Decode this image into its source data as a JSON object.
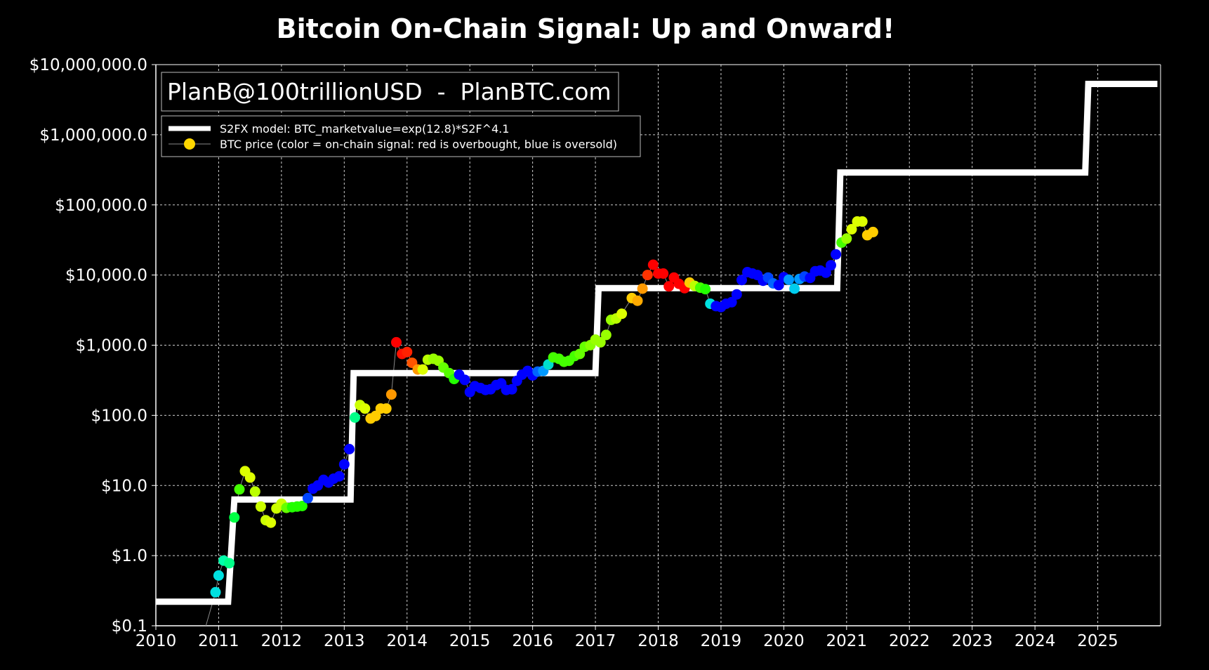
{
  "chart_data": {
    "type": "scatter",
    "title": "Bitcoin On-Chain Signal: Up and Onward!",
    "watermark": "PlanB@100trillionUSD  -  PlanBTC.com",
    "xlabel": "",
    "ylabel": "",
    "xlim": [
      2010.0,
      2026.0
    ],
    "ylim": [
      0.1,
      10000000.0
    ],
    "yscale": "log",
    "grid": true,
    "background": "#000000",
    "legend_position": "top-left",
    "x_ticks": [
      "2010",
      "2011",
      "2012",
      "2013",
      "2014",
      "2015",
      "2016",
      "2017",
      "2018",
      "2019",
      "2020",
      "2021",
      "2022",
      "2023",
      "2024",
      "2025"
    ],
    "y_ticks": [
      {
        "value": 0.1,
        "label": "$0.1"
      },
      {
        "value": 1,
        "label": "$1.0"
      },
      {
        "value": 10,
        "label": "$10.0"
      },
      {
        "value": 100,
        "label": "$100.0"
      },
      {
        "value": 1000,
        "label": "$1,000.0"
      },
      {
        "value": 10000,
        "label": "$10,000.0"
      },
      {
        "value": 100000,
        "label": "$100,000.0"
      },
      {
        "value": 1000000,
        "label": "$1,000,000.0"
      },
      {
        "value": 10000000,
        "label": "$10,000,000.0"
      }
    ],
    "series": [
      {
        "name": "S2FX model: BTC_marketvalue=exp(12.8)*S2F^4.1",
        "type": "step-line",
        "color": "#ffffff",
        "points": [
          [
            2010.0,
            0.22
          ],
          [
            2011.15,
            0.22
          ],
          [
            2011.25,
            6.3
          ],
          [
            2013.1,
            6.3
          ],
          [
            2013.15,
            400
          ],
          [
            2017.0,
            400
          ],
          [
            2017.05,
            6500
          ],
          [
            2020.85,
            6500
          ],
          [
            2020.9,
            290000
          ],
          [
            2024.8,
            290000
          ],
          [
            2024.85,
            5300000
          ],
          [
            2025.95,
            5300000
          ]
        ]
      },
      {
        "name": "BTC price (color = on-chain signal: red is overbought, blue is oversold)",
        "type": "scatter",
        "line_color": "#888888",
        "marker_legend_color": "#ffd700",
        "points": [
          {
            "x": 2010.7,
            "y": 0.05,
            "c": "#00e0e0"
          },
          {
            "x": 2010.95,
            "y": 0.3,
            "c": "#00e0e0"
          },
          {
            "x": 2011.0,
            "y": 0.52,
            "c": "#00e0e0"
          },
          {
            "x": 2011.08,
            "y": 0.85,
            "c": "#00ffaa"
          },
          {
            "x": 2011.17,
            "y": 0.78,
            "c": "#00ff88"
          },
          {
            "x": 2011.25,
            "y": 3.5,
            "c": "#00ff44"
          },
          {
            "x": 2011.33,
            "y": 8.8,
            "c": "#44ff00"
          },
          {
            "x": 2011.42,
            "y": 16,
            "c": "#ddff00"
          },
          {
            "x": 2011.5,
            "y": 13,
            "c": "#ddff00"
          },
          {
            "x": 2011.58,
            "y": 8.2,
            "c": "#bbff00"
          },
          {
            "x": 2011.67,
            "y": 5.0,
            "c": "#ccff00"
          },
          {
            "x": 2011.75,
            "y": 3.2,
            "c": "#ccff00"
          },
          {
            "x": 2011.83,
            "y": 2.95,
            "c": "#ddff00"
          },
          {
            "x": 2011.92,
            "y": 4.7,
            "c": "#ccff00"
          },
          {
            "x": 2012.0,
            "y": 5.5,
            "c": "#ccff00"
          },
          {
            "x": 2012.08,
            "y": 4.8,
            "c": "#66ff00"
          },
          {
            "x": 2012.17,
            "y": 4.9,
            "c": "#22ff00"
          },
          {
            "x": 2012.25,
            "y": 5.0,
            "c": "#22ff00"
          },
          {
            "x": 2012.33,
            "y": 5.1,
            "c": "#22ff00"
          },
          {
            "x": 2012.42,
            "y": 6.6,
            "c": "#0044ff"
          },
          {
            "x": 2012.5,
            "y": 9.0,
            "c": "#0000ff"
          },
          {
            "x": 2012.58,
            "y": 10.0,
            "c": "#0000ff"
          },
          {
            "x": 2012.67,
            "y": 12.0,
            "c": "#0000ff"
          },
          {
            "x": 2012.75,
            "y": 11.0,
            "c": "#0000ff"
          },
          {
            "x": 2012.83,
            "y": 12.5,
            "c": "#0000ff"
          },
          {
            "x": 2012.92,
            "y": 13.5,
            "c": "#0000ff"
          },
          {
            "x": 2013.0,
            "y": 20.0,
            "c": "#0000ff"
          },
          {
            "x": 2013.08,
            "y": 33.0,
            "c": "#0000ff"
          },
          {
            "x": 2013.17,
            "y": 93.0,
            "c": "#00ff88"
          },
          {
            "x": 2013.25,
            "y": 140.0,
            "c": "#ccff00"
          },
          {
            "x": 2013.33,
            "y": 125.0,
            "c": "#ddff00"
          },
          {
            "x": 2013.42,
            "y": 90.0,
            "c": "#ffcc00"
          },
          {
            "x": 2013.5,
            "y": 98.0,
            "c": "#ffcc00"
          },
          {
            "x": 2013.58,
            "y": 125.0,
            "c": "#ffcc00"
          },
          {
            "x": 2013.67,
            "y": 125.0,
            "c": "#ffcc00"
          },
          {
            "x": 2013.75,
            "y": 198.0,
            "c": "#ff9900"
          },
          {
            "x": 2013.83,
            "y": 1100.0,
            "c": "#ff0000"
          },
          {
            "x": 2013.92,
            "y": 750.0,
            "c": "#ff1100"
          },
          {
            "x": 2014.0,
            "y": 800.0,
            "c": "#ff2200"
          },
          {
            "x": 2014.08,
            "y": 560.0,
            "c": "#ff5500"
          },
          {
            "x": 2014.17,
            "y": 450.0,
            "c": "#ff9900"
          },
          {
            "x": 2014.25,
            "y": 450.0,
            "c": "#ddff00"
          },
          {
            "x": 2014.33,
            "y": 620.0,
            "c": "#bbff00"
          },
          {
            "x": 2014.42,
            "y": 640.0,
            "c": "#99ff00"
          },
          {
            "x": 2014.5,
            "y": 600.0,
            "c": "#99ff00"
          },
          {
            "x": 2014.58,
            "y": 480.0,
            "c": "#66ff00"
          },
          {
            "x": 2014.67,
            "y": 400.0,
            "c": "#55ff00"
          },
          {
            "x": 2014.75,
            "y": 330.0,
            "c": "#22ff00"
          },
          {
            "x": 2014.83,
            "y": 380.0,
            "c": "#0000ff"
          },
          {
            "x": 2014.92,
            "y": 320.0,
            "c": "#0000ff"
          },
          {
            "x": 2015.0,
            "y": 215.0,
            "c": "#0000ff"
          },
          {
            "x": 2015.08,
            "y": 260.0,
            "c": "#0000ff"
          },
          {
            "x": 2015.17,
            "y": 245.0,
            "c": "#0000ff"
          },
          {
            "x": 2015.25,
            "y": 230.0,
            "c": "#0000ff"
          },
          {
            "x": 2015.33,
            "y": 235.0,
            "c": "#0000ff"
          },
          {
            "x": 2015.42,
            "y": 270.0,
            "c": "#0000ff"
          },
          {
            "x": 2015.5,
            "y": 285.0,
            "c": "#0000ff"
          },
          {
            "x": 2015.58,
            "y": 230.0,
            "c": "#0000ff"
          },
          {
            "x": 2015.67,
            "y": 235.0,
            "c": "#0000ff"
          },
          {
            "x": 2015.75,
            "y": 310.0,
            "c": "#0000ff"
          },
          {
            "x": 2015.83,
            "y": 380.0,
            "c": "#0000ff"
          },
          {
            "x": 2015.92,
            "y": 430.0,
            "c": "#0000ff"
          },
          {
            "x": 2016.0,
            "y": 370.0,
            "c": "#0000ff"
          },
          {
            "x": 2016.08,
            "y": 420.0,
            "c": "#0066ff"
          },
          {
            "x": 2016.17,
            "y": 430.0,
            "c": "#0099ff"
          },
          {
            "x": 2016.25,
            "y": 530.0,
            "c": "#00ddcc"
          },
          {
            "x": 2016.33,
            "y": 670.0,
            "c": "#44ff00"
          },
          {
            "x": 2016.42,
            "y": 640.0,
            "c": "#44ff00"
          },
          {
            "x": 2016.5,
            "y": 580.0,
            "c": "#44ff00"
          },
          {
            "x": 2016.58,
            "y": 600.0,
            "c": "#44ff00"
          },
          {
            "x": 2016.67,
            "y": 700.0,
            "c": "#44ff00"
          },
          {
            "x": 2016.75,
            "y": 750.0,
            "c": "#66ff00"
          },
          {
            "x": 2016.83,
            "y": 950.0,
            "c": "#66ff00"
          },
          {
            "x": 2016.92,
            "y": 1000.0,
            "c": "#88ff00"
          },
          {
            "x": 2017.0,
            "y": 1200.0,
            "c": "#99ff00"
          },
          {
            "x": 2017.08,
            "y": 1100.0,
            "c": "#99ff00"
          },
          {
            "x": 2017.17,
            "y": 1400.0,
            "c": "#99ff00"
          },
          {
            "x": 2017.25,
            "y": 2300.0,
            "c": "#99ff00"
          },
          {
            "x": 2017.33,
            "y": 2400.0,
            "c": "#bbff00"
          },
          {
            "x": 2017.42,
            "y": 2800.0,
            "c": "#ddff00"
          },
          {
            "x": 2017.58,
            "y": 4700.0,
            "c": "#ffcc00"
          },
          {
            "x": 2017.67,
            "y": 4300.0,
            "c": "#ffaa00"
          },
          {
            "x": 2017.75,
            "y": 6400.0,
            "c": "#ff9900"
          },
          {
            "x": 2017.83,
            "y": 10000.0,
            "c": "#ff3300"
          },
          {
            "x": 2017.92,
            "y": 14000.0,
            "c": "#ff0000"
          },
          {
            "x": 2018.0,
            "y": 10500.0,
            "c": "#ff0000"
          },
          {
            "x": 2018.08,
            "y": 10500.0,
            "c": "#ff0000"
          },
          {
            "x": 2018.17,
            "y": 6900.0,
            "c": "#ff0000"
          },
          {
            "x": 2018.25,
            "y": 9200.0,
            "c": "#ff0000"
          },
          {
            "x": 2018.33,
            "y": 7500.0,
            "c": "#ff0000"
          },
          {
            "x": 2018.42,
            "y": 6500.0,
            "c": "#ff0000"
          },
          {
            "x": 2018.5,
            "y": 7800.0,
            "c": "#ffcc00"
          },
          {
            "x": 2018.58,
            "y": 7000.0,
            "c": "#bbff00"
          },
          {
            "x": 2018.67,
            "y": 6600.0,
            "c": "#44ff00"
          },
          {
            "x": 2018.75,
            "y": 6300.0,
            "c": "#22ff00"
          },
          {
            "x": 2018.83,
            "y": 3900.0,
            "c": "#00e0e0"
          },
          {
            "x": 2018.92,
            "y": 3600.0,
            "c": "#0000ff"
          },
          {
            "x": 2019.0,
            "y": 3500.0,
            "c": "#0000ff"
          },
          {
            "x": 2019.08,
            "y": 3900.0,
            "c": "#0000ff"
          },
          {
            "x": 2019.17,
            "y": 4100.0,
            "c": "#0000ff"
          },
          {
            "x": 2019.25,
            "y": 5300.0,
            "c": "#0000ff"
          },
          {
            "x": 2019.33,
            "y": 8500.0,
            "c": "#0000ff"
          },
          {
            "x": 2019.42,
            "y": 11000.0,
            "c": "#0000ff"
          },
          {
            "x": 2019.5,
            "y": 10500.0,
            "c": "#0000ff"
          },
          {
            "x": 2019.58,
            "y": 10000.0,
            "c": "#0000ff"
          },
          {
            "x": 2019.67,
            "y": 8300.0,
            "c": "#0000ff"
          },
          {
            "x": 2019.75,
            "y": 9200.0,
            "c": "#0044ff"
          },
          {
            "x": 2019.83,
            "y": 7600.0,
            "c": "#0066ff"
          },
          {
            "x": 2019.92,
            "y": 7200.0,
            "c": "#0000ff"
          },
          {
            "x": 2020.0,
            "y": 9300.0,
            "c": "#0000ff"
          },
          {
            "x": 2020.08,
            "y": 8600.0,
            "c": "#0099ff"
          },
          {
            "x": 2020.17,
            "y": 6400.0,
            "c": "#00ccee"
          },
          {
            "x": 2020.25,
            "y": 8800.0,
            "c": "#0099ff"
          },
          {
            "x": 2020.33,
            "y": 9500.0,
            "c": "#0044ff"
          },
          {
            "x": 2020.42,
            "y": 9100.0,
            "c": "#0000ff"
          },
          {
            "x": 2020.5,
            "y": 11300.0,
            "c": "#0000ff"
          },
          {
            "x": 2020.58,
            "y": 11600.0,
            "c": "#0000ff"
          },
          {
            "x": 2020.67,
            "y": 10800.0,
            "c": "#0000ff"
          },
          {
            "x": 2020.75,
            "y": 13800.0,
            "c": "#0000ff"
          },
          {
            "x": 2020.83,
            "y": 19700.0,
            "c": "#0000ff"
          },
          {
            "x": 2020.92,
            "y": 29000.0,
            "c": "#44ff00"
          },
          {
            "x": 2021.0,
            "y": 33000.0,
            "c": "#99ff00"
          },
          {
            "x": 2021.08,
            "y": 45000.0,
            "c": "#ddff00"
          },
          {
            "x": 2021.17,
            "y": 58000.0,
            "c": "#ddff00"
          },
          {
            "x": 2021.25,
            "y": 58000.0,
            "c": "#ddff00"
          },
          {
            "x": 2021.33,
            "y": 37000.0,
            "c": "#ffcc00"
          },
          {
            "x": 2021.42,
            "y": 41000.0,
            "c": "#ffcc00"
          }
        ]
      }
    ]
  }
}
